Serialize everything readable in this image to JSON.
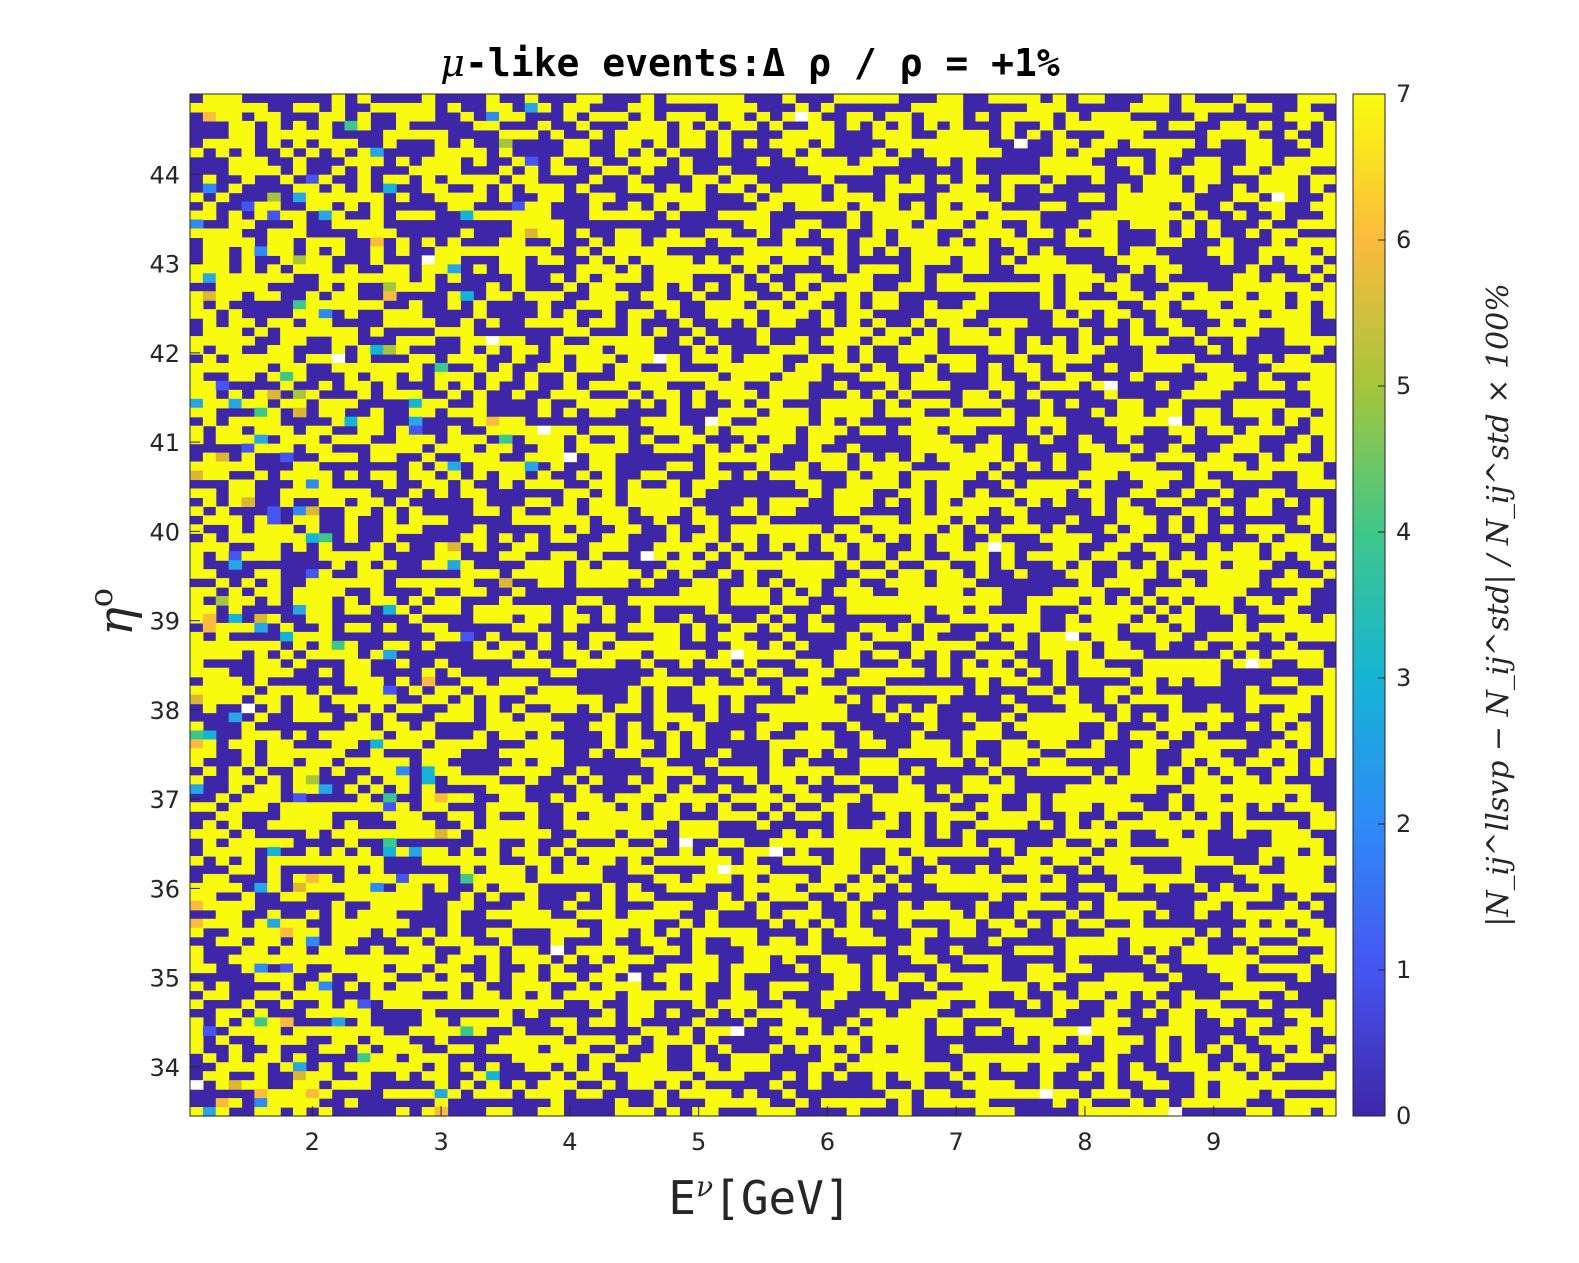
{
  "chart_data": {
    "type": "heatmap",
    "title": {
      "prefix": "μ",
      "main": "-like events:Δ ρ / ρ = +1%"
    },
    "xlabel": {
      "base": "E",
      "sup": "ν",
      "rest": "[GeV]"
    },
    "ylabel": {
      "base": "η",
      "sup": "o"
    },
    "x_range": [
      1.05,
      9.95
    ],
    "y_range": [
      33.45,
      44.9
    ],
    "x_ticks": [
      "2",
      "3",
      "4",
      "5",
      "6",
      "7",
      "8",
      "9"
    ],
    "y_ticks": [
      "34",
      "35",
      "36",
      "37",
      "38",
      "39",
      "40",
      "41",
      "42",
      "43",
      "44"
    ],
    "x_bins": 89,
    "y_bins": 114,
    "value_distribution": "cells predominantly either 0 or ≥7 (saturated), with sparse intermediate values concentrated at low E",
    "colorbar": {
      "range": [
        0,
        7
      ],
      "ticks": [
        "0",
        "1",
        "2",
        "3",
        "4",
        "5",
        "6",
        "7"
      ],
      "label": "|N_ij^llsvp − N_ij^std| / N_ij^std × 100%",
      "colormap": "parula"
    },
    "colors": {
      "low": "#3e26a8",
      "high": "#f9fb0e",
      "missing": "#ffffff"
    }
  }
}
